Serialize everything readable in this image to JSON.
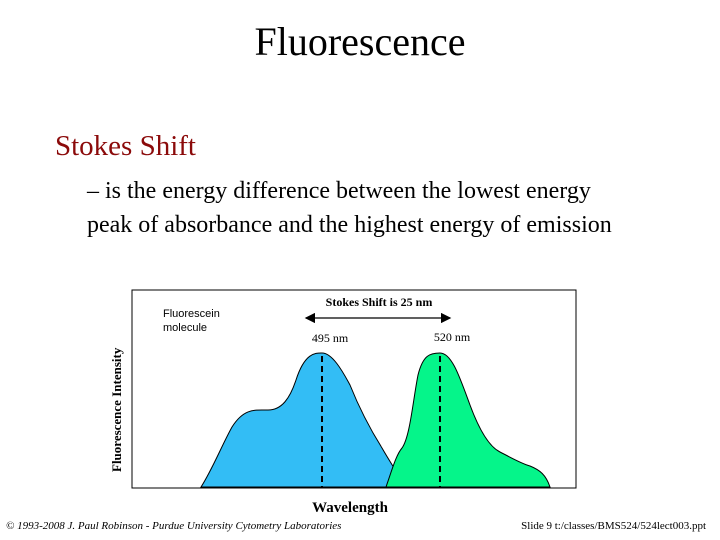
{
  "slide": {
    "title": "Fluorescence",
    "subtitle": "Stokes Shift",
    "bullet": "– is the energy difference between the lowest energy peak of absorbance and the highest energy of emission"
  },
  "figure": {
    "ylabel": "Fluorescence Intensity",
    "xlabel": "Wavelength",
    "molecule_label_line1": "Fluorescein",
    "molecule_label_line2": "molecule",
    "shift_label": "Stokes Shift is 25 nm",
    "absorbance_peak_label": "495 nm",
    "emission_peak_label": "520 nm",
    "absorbance_color": "#33bdf5",
    "emission_color": "#05f58a"
  },
  "footer": {
    "left": "© 1993-2008 J. Paul Robinson - Purdue University Cytometry Laboratories",
    "right": "Slide 9  t:/classes/BMS524/524lect003.ppt"
  }
}
